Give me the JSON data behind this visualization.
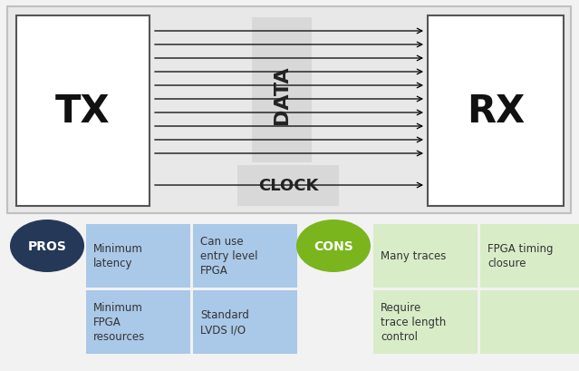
{
  "bg_color": "#f2f2f2",
  "diagram_bg": "#e8e8e8",
  "outer_border": "#c0c0c0",
  "tx_rx_border": "#555555",
  "tx_rx_bg": "#ffffff",
  "tx_label": "TX",
  "rx_label": "RX",
  "data_label": "DATA",
  "clock_label": "CLOCK",
  "data_band_color": "#cccccc",
  "clock_band_color": "#cccccc",
  "arrow_color": "#000000",
  "num_data_lines": 10,
  "pros_circle_color": "#253858",
  "cons_circle_color": "#7ab51d",
  "pros_label": "PROS",
  "cons_label": "CONS",
  "pros_box_color": "#aac8e8",
  "cons_box_color": "#d8ecc8",
  "pros_items": [
    [
      "Minimum\nlatency",
      "Can use\nentry level\nFPGA"
    ],
    [
      "Minimum\nFPGA\nresources",
      "Standard\nLVDS I/O"
    ]
  ],
  "cons_items": [
    [
      "Many traces",
      "FPGA timing\nclosure"
    ],
    [
      "Require\ntrace length\ncontrol",
      ""
    ]
  ]
}
